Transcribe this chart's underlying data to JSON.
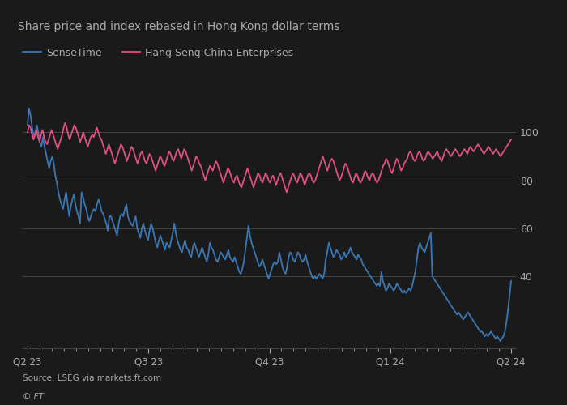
{
  "title": "Share price and index rebased in Hong Kong dollar terms",
  "source": "Source: LSEG via markets.ft.com",
  "ft_label": "© FT",
  "background_color": "#1a1a1a",
  "text_color": "#aaaaaa",
  "grid_color": "#444444",
  "sensetime_color": "#3a78b5",
  "hangseng_color": "#e05080",
  "legend": [
    "SenseTime",
    "Hang Seng China Enterprises"
  ],
  "yticks": [
    40,
    60,
    80,
    100
  ],
  "xtick_labels": [
    "Q2 23",
    "Q3 23",
    "Q4 23",
    "Q1 24",
    "Q2 24"
  ],
  "xtick_positions": [
    0,
    0.25,
    0.5,
    0.75,
    1.0
  ],
  "sensetime": [
    103,
    110,
    107,
    102,
    98,
    100,
    103,
    100,
    96,
    94,
    98,
    94,
    91,
    88,
    85,
    88,
    90,
    87,
    82,
    79,
    75,
    72,
    70,
    68,
    72,
    75,
    70,
    65,
    69,
    72,
    74,
    70,
    67,
    65,
    62,
    75,
    73,
    70,
    68,
    65,
    63,
    65,
    67,
    68,
    67,
    70,
    72,
    70,
    67,
    66,
    64,
    62,
    59,
    65,
    65,
    63,
    61,
    59,
    57,
    62,
    65,
    66,
    65,
    68,
    70,
    65,
    63,
    62,
    61,
    63,
    65,
    60,
    58,
    56,
    60,
    62,
    59,
    57,
    55,
    59,
    62,
    60,
    57,
    54,
    52,
    55,
    57,
    55,
    53,
    51,
    54,
    53,
    52,
    55,
    58,
    62,
    58,
    55,
    53,
    51,
    50,
    53,
    55,
    52,
    51,
    49,
    48,
    52,
    54,
    52,
    50,
    48,
    50,
    52,
    50,
    48,
    46,
    49,
    54,
    52,
    51,
    49,
    47,
    46,
    48,
    50,
    49,
    48,
    47,
    49,
    51,
    48,
    47,
    46,
    48,
    46,
    44,
    42,
    41,
    43,
    46,
    51,
    56,
    61,
    57,
    54,
    52,
    50,
    48,
    46,
    44,
    45,
    47,
    45,
    43,
    41,
    39,
    41,
    43,
    45,
    46,
    45,
    46,
    50,
    47,
    44,
    42,
    41,
    44,
    48,
    50,
    49,
    47,
    46,
    48,
    50,
    49,
    47,
    46,
    47,
    49,
    46,
    44,
    42,
    40,
    39,
    40,
    39,
    40,
    41,
    40,
    39,
    41,
    47,
    50,
    54,
    52,
    50,
    48,
    49,
    51,
    50,
    49,
    47,
    48,
    50,
    48,
    49,
    50,
    52,
    50,
    49,
    48,
    47,
    49,
    48,
    47,
    45,
    44,
    43,
    42,
    41,
    40,
    39,
    38,
    37,
    36,
    37,
    36,
    42,
    38,
    36,
    34,
    35,
    37,
    36,
    35,
    34,
    35,
    37,
    36,
    35,
    34,
    33,
    34,
    33,
    34,
    35,
    34,
    36,
    39,
    42,
    47,
    52,
    54,
    52,
    51,
    50,
    52,
    54,
    56,
    58,
    40,
    39,
    38,
    37,
    36,
    35,
    34,
    33,
    32,
    31,
    30,
    29,
    28,
    27,
    26,
    25,
    24,
    25,
    24,
    23,
    22,
    23,
    24,
    25,
    24,
    23,
    22,
    21,
    20,
    19,
    18,
    17,
    17,
    16,
    15,
    16,
    15,
    16,
    17,
    16,
    15,
    14,
    15,
    14,
    13,
    14,
    15,
    17,
    21,
    26,
    32,
    38
  ],
  "hangseng": [
    100,
    103,
    102,
    99,
    97,
    99,
    101,
    98,
    96,
    99,
    101,
    98,
    96,
    95,
    97,
    99,
    101,
    99,
    97,
    95,
    93,
    95,
    97,
    99,
    102,
    104,
    102,
    99,
    97,
    99,
    101,
    103,
    102,
    100,
    98,
    96,
    98,
    100,
    98,
    96,
    94,
    96,
    98,
    99,
    98,
    100,
    102,
    100,
    98,
    97,
    95,
    93,
    91,
    93,
    95,
    93,
    91,
    89,
    87,
    89,
    91,
    93,
    95,
    94,
    92,
    90,
    88,
    90,
    92,
    94,
    93,
    91,
    89,
    87,
    89,
    91,
    92,
    90,
    88,
    87,
    89,
    91,
    90,
    88,
    86,
    84,
    86,
    88,
    90,
    89,
    87,
    86,
    88,
    90,
    92,
    91,
    89,
    88,
    90,
    92,
    93,
    91,
    89,
    91,
    93,
    92,
    90,
    88,
    86,
    84,
    86,
    88,
    90,
    89,
    87,
    86,
    84,
    82,
    80,
    82,
    84,
    86,
    85,
    84,
    86,
    88,
    87,
    85,
    83,
    81,
    79,
    81,
    83,
    85,
    84,
    82,
    80,
    79,
    81,
    82,
    80,
    78,
    77,
    79,
    81,
    83,
    85,
    83,
    81,
    79,
    77,
    79,
    81,
    83,
    82,
    80,
    79,
    81,
    83,
    82,
    80,
    79,
    81,
    82,
    80,
    78,
    80,
    82,
    83,
    81,
    79,
    77,
    75,
    77,
    79,
    81,
    83,
    82,
    80,
    79,
    81,
    83,
    82,
    80,
    78,
    80,
    82,
    83,
    82,
    80,
    79,
    80,
    82,
    84,
    86,
    88,
    90,
    88,
    86,
    84,
    86,
    88,
    89,
    88,
    86,
    84,
    82,
    80,
    81,
    83,
    85,
    87,
    86,
    84,
    82,
    80,
    79,
    81,
    83,
    82,
    80,
    79,
    80,
    82,
    84,
    83,
    81,
    80,
    82,
    83,
    82,
    80,
    79,
    80,
    82,
    84,
    86,
    87,
    89,
    88,
    86,
    84,
    83,
    85,
    87,
    89,
    88,
    86,
    84,
    85,
    87,
    88,
    89,
    91,
    92,
    91,
    89,
    88,
    89,
    91,
    92,
    91,
    89,
    88,
    89,
    91,
    92,
    91,
    90,
    89,
    90,
    91,
    92,
    90,
    89,
    88,
    90,
    92,
    93,
    92,
    91,
    90,
    91,
    92,
    93,
    92,
    91,
    90,
    91,
    92,
    93,
    92,
    91,
    93,
    94,
    93,
    92,
    93,
    94,
    95,
    94,
    93,
    92,
    91,
    92,
    93,
    94,
    93,
    92,
    91,
    92,
    93,
    92,
    91,
    90,
    91,
    92,
    93,
    94,
    95,
    96,
    97
  ]
}
